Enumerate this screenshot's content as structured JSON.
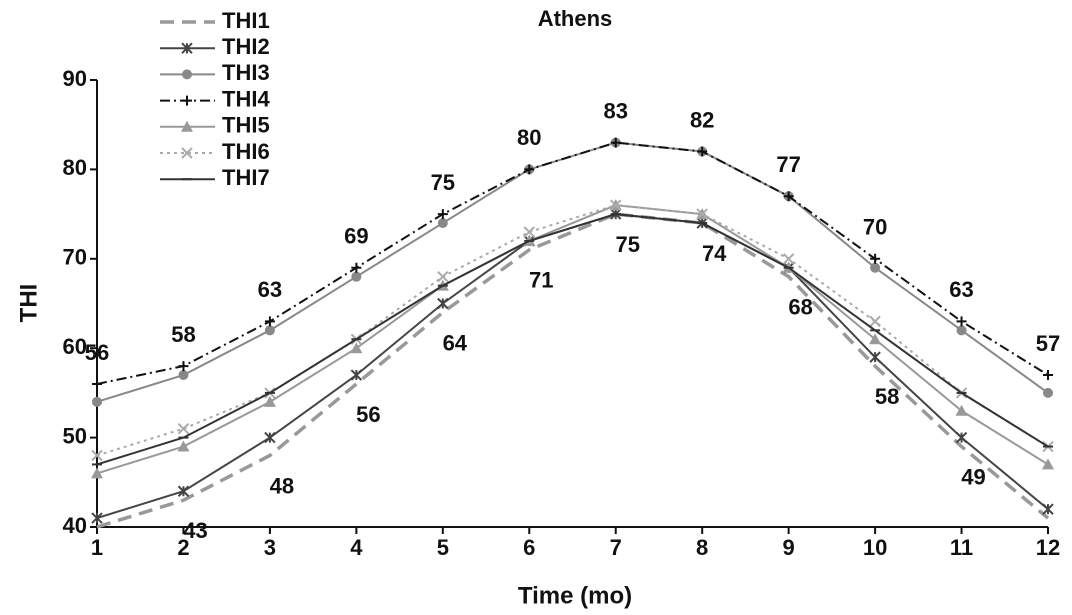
{
  "chart_data": {
    "type": "line",
    "title": "Athens",
    "xlabel": "Time (mo)",
    "ylabel": "THI",
    "x": [
      1,
      2,
      3,
      4,
      5,
      6,
      7,
      8,
      9,
      10,
      11,
      12
    ],
    "xlim": [
      1,
      12
    ],
    "xticks": [
      1,
      2,
      3,
      4,
      5,
      6,
      7,
      8,
      9,
      10,
      11,
      12
    ],
    "ylim": [
      40,
      90
    ],
    "yticks": [
      40,
      50,
      60,
      70,
      80,
      90
    ],
    "legend": "top-left",
    "series": [
      {
        "name": "THI1",
        "color": "#999999",
        "dash": "dashed",
        "marker": "none",
        "values": [
          40,
          43,
          48,
          56,
          64,
          71,
          75,
          74,
          68,
          58,
          49,
          41
        ],
        "data_labels": "below",
        "labeled": [
          false,
          true,
          true,
          true,
          true,
          true,
          true,
          true,
          true,
          true,
          true,
          false
        ]
      },
      {
        "name": "THI2",
        "color": "#444444",
        "dash": "solid",
        "marker": "star",
        "values": [
          41,
          44,
          50,
          57,
          65,
          72,
          75,
          74,
          69,
          59,
          50,
          42
        ]
      },
      {
        "name": "THI3",
        "color": "#888888",
        "dash": "solid",
        "marker": "circle",
        "values": [
          54,
          57,
          62,
          68,
          74,
          80,
          83,
          82,
          77,
          69,
          62,
          55
        ]
      },
      {
        "name": "THI4",
        "color": "#111111",
        "dash": "dashdot",
        "marker": "plus",
        "values": [
          56,
          58,
          63,
          69,
          75,
          80,
          83,
          82,
          77,
          70,
          63,
          57
        ],
        "data_labels": "above",
        "labeled": [
          true,
          true,
          true,
          true,
          true,
          true,
          true,
          true,
          true,
          true,
          true,
          true
        ]
      },
      {
        "name": "THI5",
        "color": "#999999",
        "dash": "solid",
        "marker": "triangle",
        "values": [
          46,
          49,
          54,
          60,
          67,
          72,
          76,
          75,
          69,
          61,
          53,
          47
        ]
      },
      {
        "name": "THI6",
        "color": "#aaaaaa",
        "dash": "dotted",
        "marker": "x",
        "values": [
          48,
          51,
          55,
          61,
          68,
          73,
          76,
          75,
          70,
          63,
          55,
          49
        ]
      },
      {
        "name": "THI7",
        "color": "#333333",
        "dash": "solid",
        "marker": "dash",
        "values": [
          47,
          50,
          55,
          61,
          67,
          72,
          75,
          74,
          69,
          62,
          55,
          49
        ]
      }
    ]
  }
}
